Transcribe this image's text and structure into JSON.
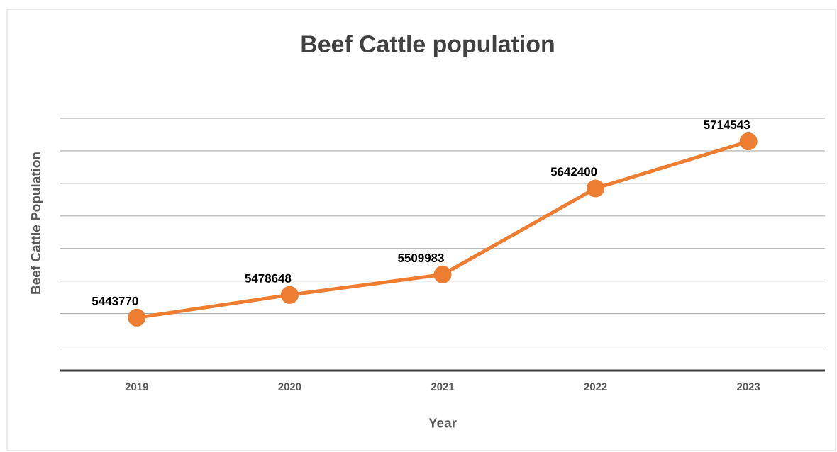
{
  "chart_data": {
    "type": "line",
    "title": "Beef Cattle population",
    "xlabel": "Year",
    "ylabel": "Beef Cattle Population",
    "categories": [
      "2019",
      "2020",
      "2021",
      "2022",
      "2023"
    ],
    "values": [
      5443770,
      5478648,
      5509983,
      5642400,
      5714543
    ],
    "color": "#ed7d31",
    "marker": "circle",
    "line_style": "solid",
    "data_labels": true,
    "grid": "y",
    "tick_labels": "x"
  }
}
